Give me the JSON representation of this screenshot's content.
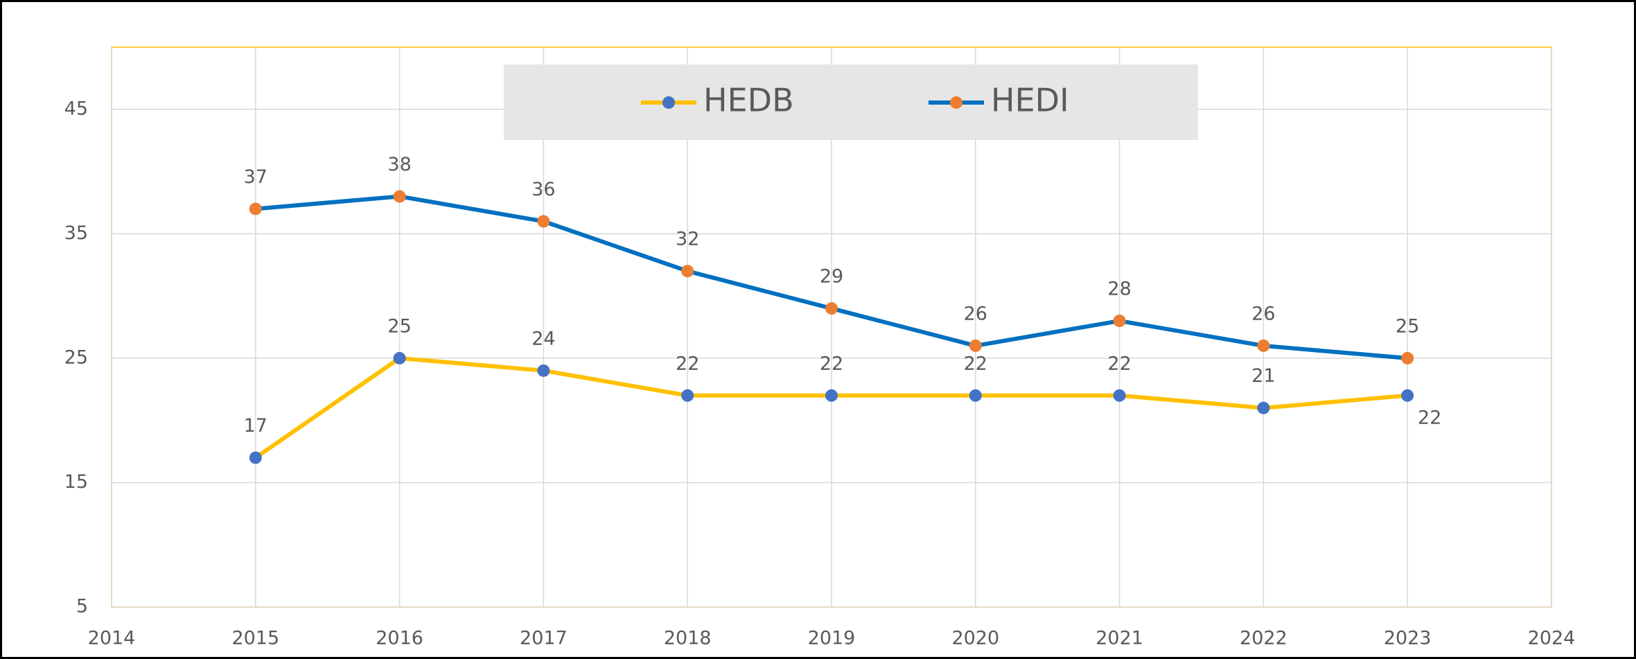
{
  "chart_data": {
    "type": "line",
    "x": [
      2015,
      2016,
      2017,
      2018,
      2019,
      2020,
      2021,
      2022,
      2023
    ],
    "series": [
      {
        "name": "HEDB",
        "color": "#FFC000",
        "marker_color": "#4472C4",
        "values": [
          17,
          25,
          24,
          22,
          22,
          22,
          22,
          21,
          22
        ]
      },
      {
        "name": "HEDI",
        "color": "#0070C0",
        "marker_color": "#ED7D31",
        "values": [
          37,
          38,
          36,
          32,
          29,
          26,
          28,
          26,
          25
        ]
      }
    ],
    "xlim": [
      2014,
      2024
    ],
    "xticks": [
      2014,
      2015,
      2016,
      2017,
      2018,
      2019,
      2020,
      2021,
      2022,
      2023,
      2024
    ],
    "ylim": [
      5,
      50
    ],
    "yticks": [
      5,
      15,
      25,
      35,
      45
    ],
    "grid": true,
    "legend": "top"
  }
}
